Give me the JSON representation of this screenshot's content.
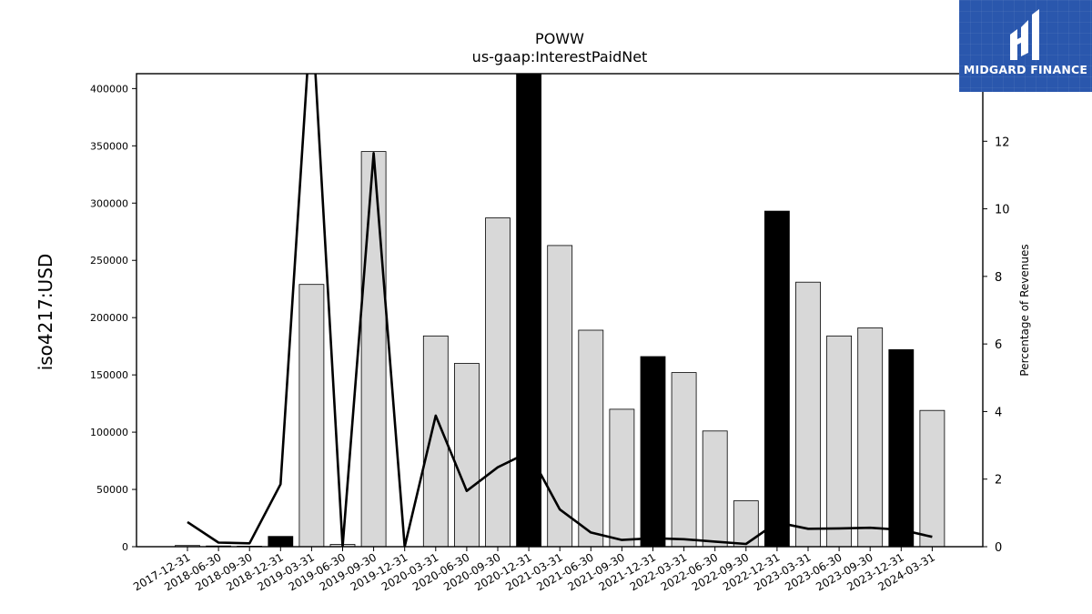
{
  "chart_data": {
    "type": "bar",
    "title": "POWW",
    "subtitle": "us-gaap:InterestPaidNet",
    "ylabel": "iso4217:USD",
    "y2label": "Percentage of Revenues",
    "ylim": [
      0,
      413000
    ],
    "y2lim": [
      0,
      14
    ],
    "yticks": [
      0,
      50000,
      100000,
      150000,
      200000,
      250000,
      300000,
      350000,
      400000
    ],
    "y2ticks": [
      0,
      2,
      4,
      6,
      8,
      10,
      12
    ],
    "categories": [
      "2017-12-31",
      "2018-06-30",
      "2018-09-30",
      "2018-12-31",
      "2019-03-31",
      "2019-06-30",
      "2019-09-30",
      "2019-12-31",
      "2020-03-31",
      "2020-06-30",
      "2020-09-30",
      "2020-12-31",
      "2021-03-31",
      "2021-06-30",
      "2021-09-30",
      "2021-12-31",
      "2022-03-31",
      "2022-06-30",
      "2022-09-30",
      "2022-12-31",
      "2023-03-31",
      "2023-06-30",
      "2023-09-30",
      "2023-12-31",
      "2024-03-31"
    ],
    "series": [
      {
        "kind": "bar",
        "values": [
          1000,
          600,
          500,
          9000,
          229000,
          2000,
          345000,
          0,
          184000,
          160000,
          287000,
          413000,
          263000,
          189000,
          120000,
          166000,
          152000,
          101000,
          40000,
          293000,
          231000,
          184000,
          191000,
          172000,
          119000
        ],
        "highlight": [
          false,
          false,
          false,
          true,
          false,
          false,
          false,
          false,
          false,
          false,
          false,
          true,
          false,
          false,
          false,
          true,
          false,
          false,
          false,
          true,
          false,
          false,
          false,
          true,
          false
        ]
      },
      {
        "kind": "line",
        "axis": "right",
        "values": [
          0.73,
          0.12,
          0.1,
          1.85,
          16,
          0.0,
          11.65,
          0.0,
          3.88,
          1.65,
          2.35,
          2.8,
          1.1,
          0.42,
          0.2,
          0.25,
          0.22,
          0.15,
          0.08,
          0.72,
          0.53,
          0.54,
          0.56,
          0.5,
          0.29
        ]
      }
    ],
    "colors": {
      "bar": "#d8d8d8",
      "bar_highlight": "#000000",
      "line": "#000000"
    }
  },
  "logo": {
    "text": "MIDGARD FINANCE",
    "color": "#2a57ad"
  }
}
